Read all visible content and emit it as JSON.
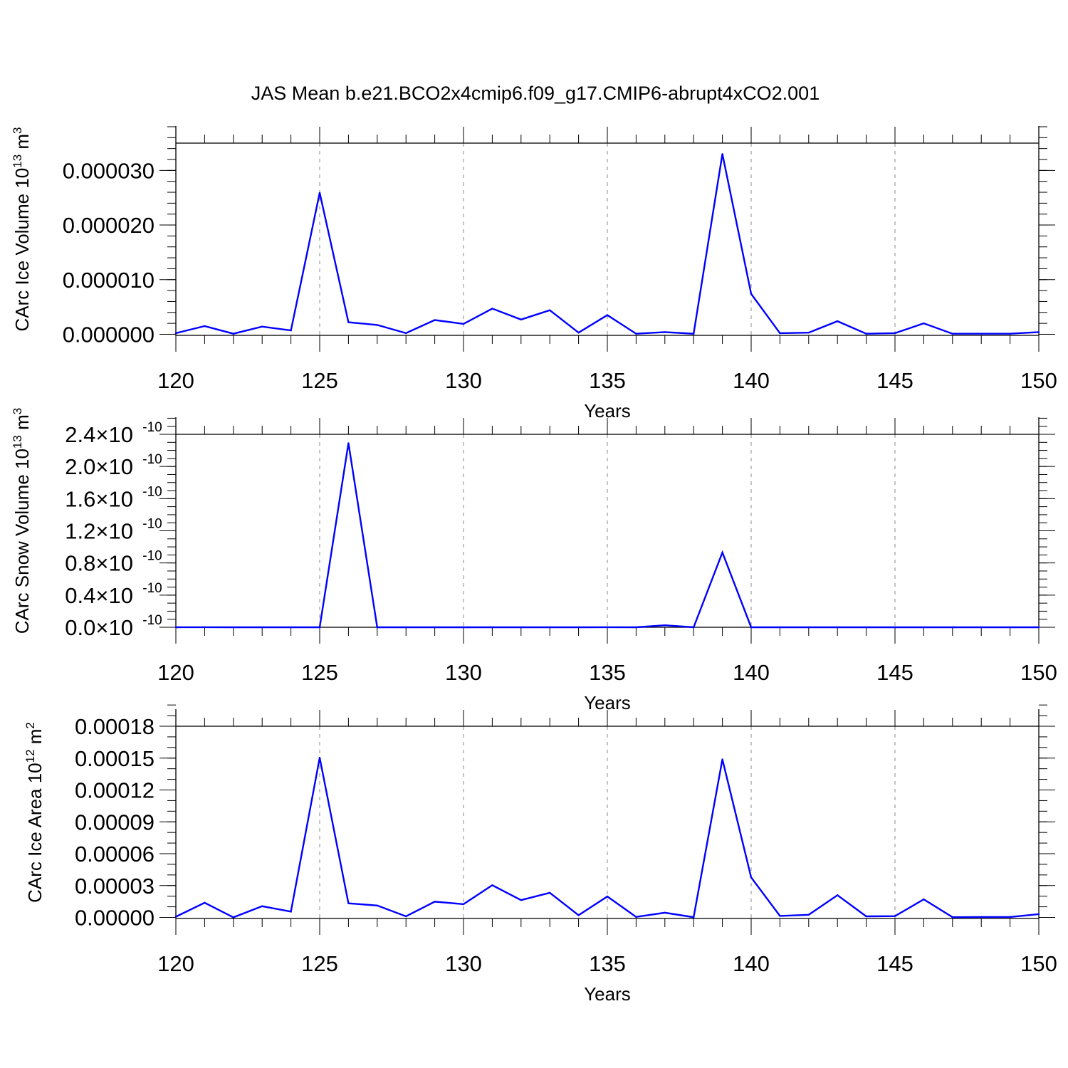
{
  "title": "JAS Mean b.e21.BCO2x4cmip6.f09_g17.CMIP6-abrupt4xCO2.001",
  "colors": {
    "line": "#0000ff",
    "axis": "#000000",
    "grid": "#888888"
  },
  "chart_data": [
    {
      "type": "line",
      "ylabel": "CArc Ice Volume 10",
      "ylabel_sup": "13",
      "ylabel_unit": "m",
      "ylabel_unit_sup": "3",
      "xlabel": "Years",
      "xlim": [
        120,
        150
      ],
      "ylim": [
        -2e-07,
        3.5e-05
      ],
      "x_ticks": [
        120,
        125,
        130,
        135,
        140,
        145,
        150
      ],
      "x_tick_labels": [
        "120",
        "125",
        "130",
        "135",
        "140",
        "145",
        "150"
      ],
      "y_ticks": [
        0,
        1e-05,
        2e-05,
        3e-05
      ],
      "y_tick_labels": [
        "0.000000",
        "0.000010",
        "0.000020",
        "0.000030"
      ],
      "y_minor_step": 2e-06,
      "grid": "vertical dashed at major x ticks",
      "x": [
        120,
        121,
        122,
        123,
        124,
        125,
        126,
        127,
        128,
        129,
        130,
        131,
        132,
        133,
        134,
        135,
        136,
        137,
        138,
        139,
        140,
        141,
        142,
        143,
        144,
        145,
        146,
        147,
        148,
        149,
        150
      ],
      "y": [
        2e-07,
        1.5e-06,
        1e-07,
        1.4e-06,
        7e-07,
        2.59e-05,
        2.2e-06,
        1.7e-06,
        2e-07,
        2.6e-06,
        1.9e-06,
        4.7e-06,
        2.7e-06,
        4.4e-06,
        3e-07,
        3.5e-06,
        1e-07,
        4e-07,
        1e-07,
        3.3e-05,
        7.4e-06,
        2e-07,
        3e-07,
        2.4e-06,
        1e-07,
        2e-07,
        2e-06,
        1e-07,
        1e-07,
        1e-07,
        4e-07
      ]
    },
    {
      "type": "line",
      "ylabel": "CArc Snow Volume 10",
      "ylabel_sup": "13",
      "ylabel_unit": "m",
      "ylabel_unit_sup": "3",
      "xlabel": "Years",
      "xlim": [
        120,
        150
      ],
      "ylim": [
        0,
        2.4e-10
      ],
      "x_ticks": [
        120,
        125,
        130,
        135,
        140,
        145,
        150
      ],
      "x_tick_labels": [
        "120",
        "125",
        "130",
        "135",
        "140",
        "145",
        "150"
      ],
      "y_ticks": [
        0,
        4e-11,
        8e-11,
        1.2e-10,
        1.6e-10,
        2e-10,
        2.4e-10
      ],
      "y_tick_mantissas": [
        "0.0",
        "0.4",
        "0.8",
        "1.2",
        "1.6",
        "2.0",
        "2.4"
      ],
      "y_tick_times": "×",
      "y_tick_base": "10",
      "y_tick_exponent": "-10",
      "y_minor_step": 1e-11,
      "grid": "vertical dashed at major x ticks",
      "x": [
        120,
        121,
        122,
        123,
        124,
        125,
        126,
        127,
        128,
        129,
        130,
        131,
        132,
        133,
        134,
        135,
        136,
        137,
        138,
        139,
        140,
        141,
        142,
        143,
        144,
        145,
        146,
        147,
        148,
        149,
        150
      ],
      "y": [
        0,
        1e-13,
        0,
        0,
        0,
        0,
        2.29e-10,
        0,
        0,
        0,
        0,
        0,
        0,
        0,
        0,
        1e-13,
        0,
        2.5e-12,
        0,
        9.3e-11,
        0,
        0,
        0,
        0,
        0,
        0,
        0,
        0,
        0,
        0,
        0
      ]
    },
    {
      "type": "line",
      "ylabel": "CArc Ice Area 10",
      "ylabel_sup": "12",
      "ylabel_unit": "m",
      "ylabel_unit_sup": "2",
      "xlabel": "Years",
      "xlim": [
        120,
        150
      ],
      "ylim": [
        -1e-06,
        0.00018
      ],
      "x_ticks": [
        120,
        125,
        130,
        135,
        140,
        145,
        150
      ],
      "x_tick_labels": [
        "120",
        "125",
        "130",
        "135",
        "140",
        "145",
        "150"
      ],
      "y_ticks": [
        0,
        3e-05,
        6e-05,
        9e-05,
        0.00012,
        0.00015,
        0.00018
      ],
      "y_tick_labels": [
        "0.00000",
        "0.00003",
        "0.00006",
        "0.00009",
        "0.00012",
        "0.00015",
        "0.00018"
      ],
      "y_minor_step": 1e-05,
      "grid": "vertical dashed at major x ticks",
      "x": [
        120,
        121,
        122,
        123,
        124,
        125,
        126,
        127,
        128,
        129,
        130,
        131,
        132,
        133,
        134,
        135,
        136,
        137,
        138,
        139,
        140,
        141,
        142,
        143,
        144,
        145,
        146,
        147,
        148,
        149,
        150
      ],
      "y": [
        7e-07,
        1.38e-05,
        1e-07,
        1.05e-05,
        5.5e-06,
        0.0001504,
        1.33e-05,
        1.12e-05,
        1e-06,
        1.48e-05,
        1.25e-05,
        3.03e-05,
        1.63e-05,
        2.32e-05,
        2.1e-06,
        1.97e-05,
        5e-07,
        4.4e-06,
        2e-07,
        0.0001488,
        3.77e-05,
        1.4e-06,
        2.5e-06,
        2.09e-05,
        1e-06,
        1.2e-06,
        1.7e-05,
        2e-07,
        4e-07,
        4e-07,
        3.1e-06
      ]
    }
  ]
}
